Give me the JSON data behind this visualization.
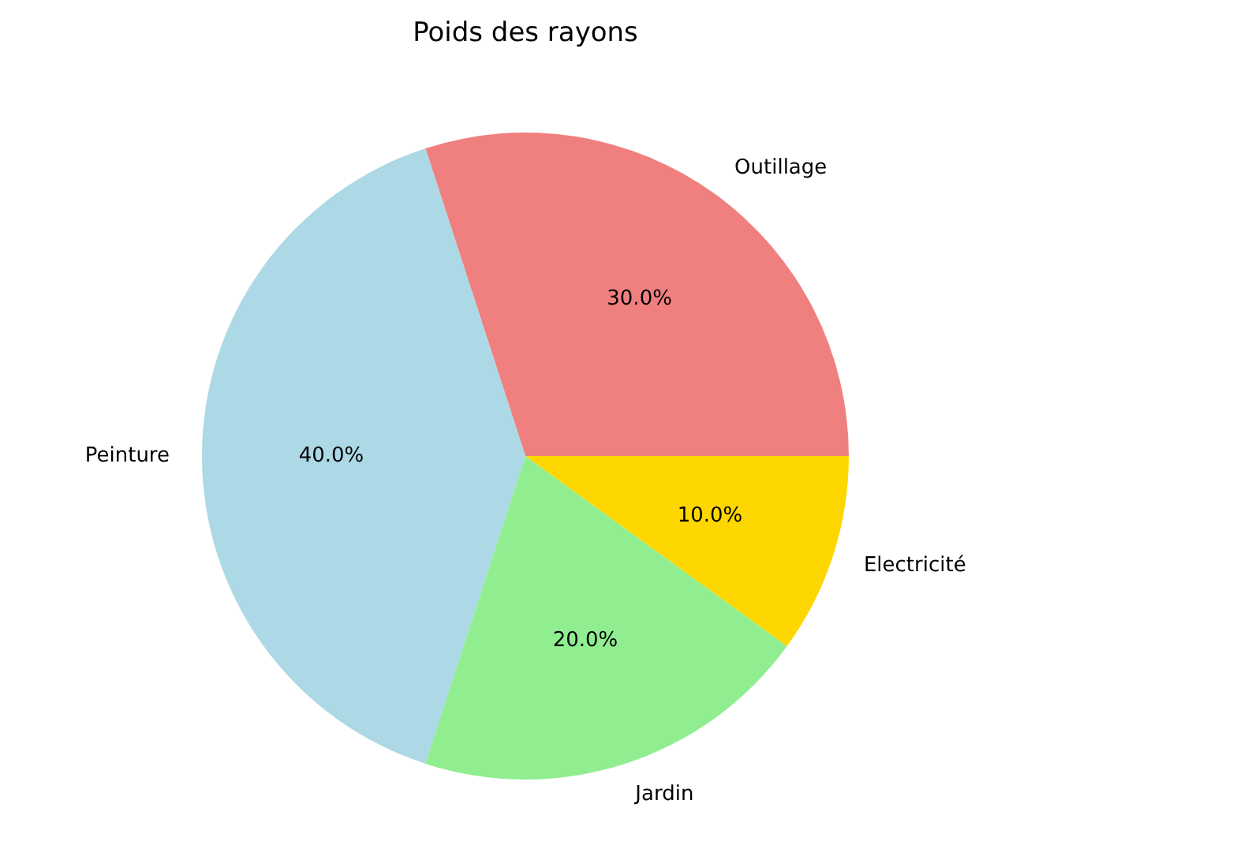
{
  "chart_data": {
    "type": "pie",
    "title": "Poids des rayons",
    "categories": [
      "Outillage",
      "Peinture",
      "Jardin",
      "Electricité"
    ],
    "values": [
      30,
      40,
      20,
      10
    ],
    "colors": [
      "#f08080",
      "#add8e6",
      "#90ee90",
      "#ffd700"
    ],
    "value_labels": [
      "30.0%",
      "40.0%",
      "20.0%",
      "10.0%"
    ]
  }
}
